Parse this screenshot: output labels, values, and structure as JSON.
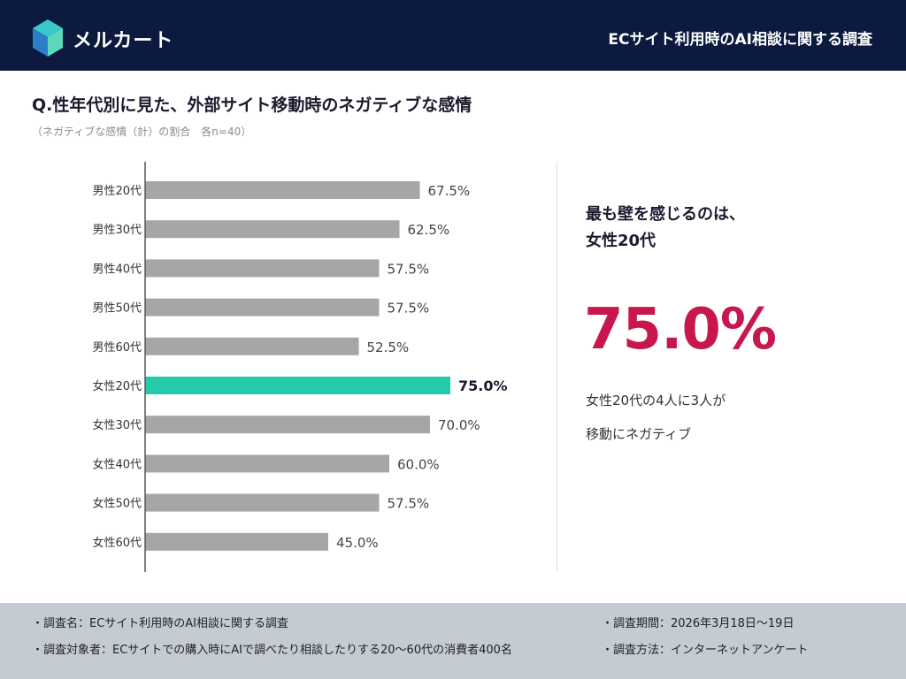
{
  "header": {
    "brand": "メルカート",
    "logo_icon": "hexagon-logo-icon",
    "title": "ECサイト利用時のAI相談に関する調査",
    "bg_color": "#0b1a3e"
  },
  "question": {
    "title": "Q.性年代別に見た、外部サイト移動時のネガティブな感情",
    "subtitle": "（ネガティブな感情（計）の割合　各n=40）"
  },
  "chart_data": {
    "type": "bar",
    "orientation": "horizontal",
    "categories": [
      "男性20代",
      "男性30代",
      "男性40代",
      "男性50代",
      "男性60代",
      "女性20代",
      "女性30代",
      "女性40代",
      "女性50代",
      "女性60代"
    ],
    "values": [
      67.5,
      62.5,
      57.5,
      57.5,
      52.5,
      75.0,
      70.0,
      60.0,
      57.5,
      45.0
    ],
    "data_labels": [
      "67.5%",
      "62.5%",
      "57.5%",
      "57.5%",
      "52.5%",
      "75.0%",
      "70.0%",
      "60.0%",
      "57.5%",
      "45.0%"
    ],
    "highlight_index": 5,
    "bar_color": "#a6a6a6",
    "highlight_color": "#26c9aa",
    "xlim": [
      0,
      100
    ],
    "grid": false,
    "legend": false
  },
  "highlight": {
    "heading_line1": "最も壁を感じるのは、",
    "heading_line2": "女性20代",
    "value": "75.0%",
    "value_color": "#c8174d",
    "note_line1": "女性20代の4人に3人が",
    "note_line2": "移動にネガティブ"
  },
  "footer": {
    "survey_name": "・調査名：ECサイト利用時のAI相談に関する調査",
    "target": "・調査対象者：ECサイトでの購入時にAIで調べたり相談したりする20〜60代の消費者400名",
    "period": "・調査期間：2026年3月18日〜19日",
    "method": "・調査方法：インターネットアンケート",
    "bg_color": "#c4cbd3"
  }
}
